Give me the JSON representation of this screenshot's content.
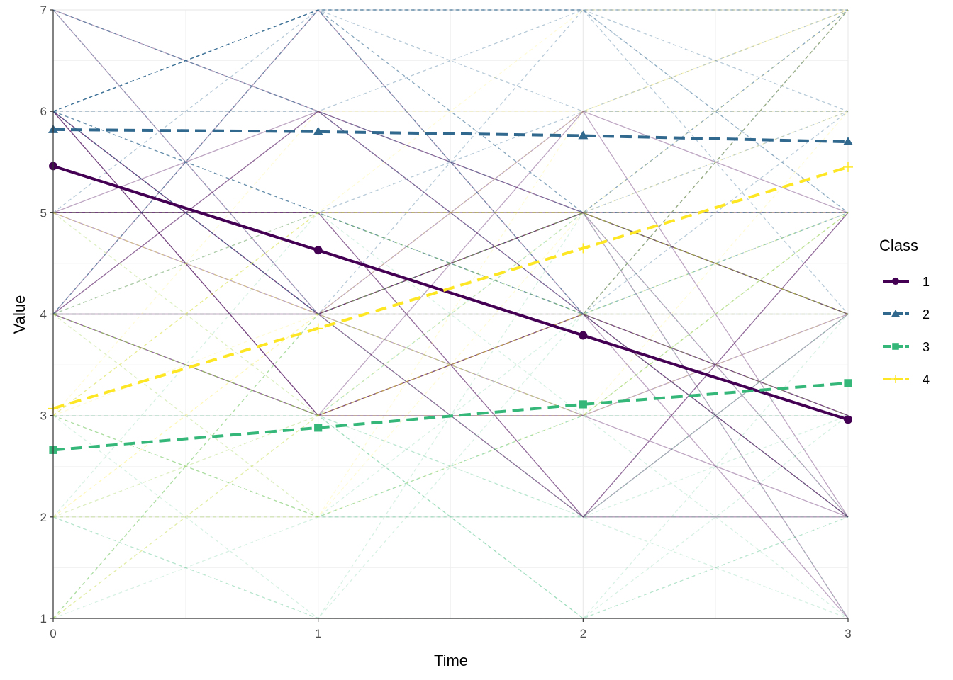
{
  "chart_data": {
    "type": "line",
    "title": "",
    "xlabel": "Time",
    "ylabel": "Value",
    "x": [
      0,
      1,
      2,
      3
    ],
    "xlim": [
      0,
      3
    ],
    "ylim": [
      1,
      7
    ],
    "x_ticks": [
      "0",
      "1",
      "2",
      "3"
    ],
    "y_ticks": [
      "1",
      "2",
      "3",
      "4",
      "5",
      "6",
      "7"
    ],
    "grid": true,
    "legend": {
      "title": "Class",
      "position": "right",
      "entries": [
        "1",
        "2",
        "3",
        "4"
      ]
    },
    "series": [
      {
        "name": "1",
        "color": "#440154",
        "linetype": "solid",
        "marker": "circle",
        "values": [
          5.46,
          4.63,
          3.79,
          2.96
        ]
      },
      {
        "name": "2",
        "color": "#31688E",
        "linetype": "dashed",
        "marker": "triangle",
        "values": [
          5.82,
          5.8,
          5.76,
          5.7
        ]
      },
      {
        "name": "3",
        "color": "#35B779",
        "linetype": "dashed",
        "marker": "square",
        "values": [
          2.66,
          2.88,
          3.11,
          3.32
        ]
      },
      {
        "name": "4",
        "color": "#FDE725",
        "linetype": "dashed",
        "marker": "plus",
        "values": [
          3.07,
          3.86,
          4.65,
          5.45
        ]
      }
    ],
    "annotations": "Background: many faint individual trajectories (integer values 1-7) colored by class"
  },
  "axes": {
    "x_title": "Time",
    "y_title": "Value",
    "x_tick_labels": [
      "0",
      "1",
      "2",
      "3"
    ],
    "y_tick_labels": [
      "1",
      "2",
      "3",
      "4",
      "5",
      "6",
      "7"
    ]
  },
  "legend": {
    "title": "Class",
    "items": [
      {
        "label": "1",
        "color": "#440154"
      },
      {
        "label": "2",
        "color": "#31688E"
      },
      {
        "label": "3",
        "color": "#35B779"
      },
      {
        "label": "4",
        "color": "#FDE725"
      }
    ]
  }
}
